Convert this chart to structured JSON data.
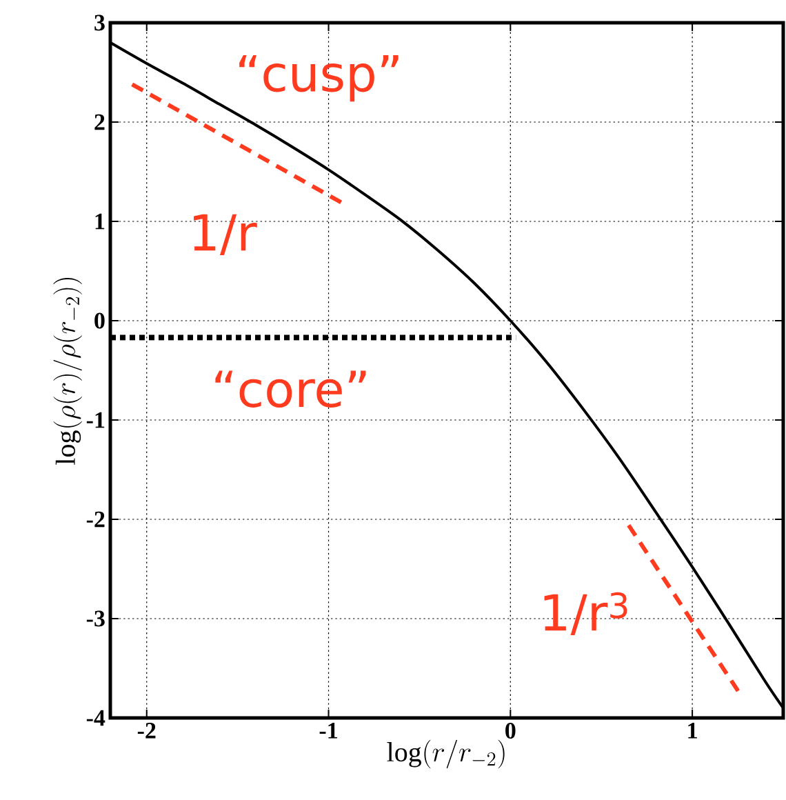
{
  "chart_data": {
    "type": "line",
    "xlabel": "\\log(r/r_{-2})",
    "ylabel": "\\log(\\rho(r)/\\rho(r_{-2}))",
    "xlim": [
      -2.2,
      1.5
    ],
    "ylim": [
      -4,
      3
    ],
    "xticks": [
      -2,
      -1,
      0,
      1
    ],
    "yticks": [
      -4,
      -3,
      -2,
      -1,
      0,
      1,
      2,
      3
    ],
    "grid": true,
    "marker": "none",
    "series": [
      {
        "color": "#000000",
        "line_style": "solid",
        "x": [
          -2.2,
          -2.0,
          -1.8,
          -1.6,
          -1.4,
          -1.2,
          -1.0,
          -0.8,
          -0.6,
          -0.4,
          -0.2,
          0.0,
          0.2,
          0.4,
          0.6,
          0.8,
          1.0,
          1.2,
          1.4,
          1.5
        ],
        "values": [
          2.8,
          2.59,
          2.39,
          2.18,
          1.97,
          1.75,
          1.52,
          1.27,
          1.01,
          0.71,
          0.38,
          0.0,
          -0.42,
          -0.89,
          -1.39,
          -1.93,
          -2.48,
          -3.05,
          -3.63,
          -3.9
        ]
      },
      {
        "color": "#ff3b1f",
        "line_style": "dashed",
        "x": [
          -2.08,
          -0.91
        ],
        "values": [
          2.38,
          1.17
        ]
      },
      {
        "color": "#ff3b1f",
        "line_style": "dashed",
        "x": [
          0.65,
          1.27
        ],
        "values": [
          -2.06,
          -3.78
        ]
      },
      {
        "color": "#000000",
        "line_style": "dotted",
        "x": [
          -2.2,
          0.03
        ],
        "values": [
          -0.17,
          -0.17
        ]
      }
    ],
    "annotations": [
      "“cusp”",
      "1/r",
      "“core”",
      "1/r$^{3}$"
    ]
  }
}
